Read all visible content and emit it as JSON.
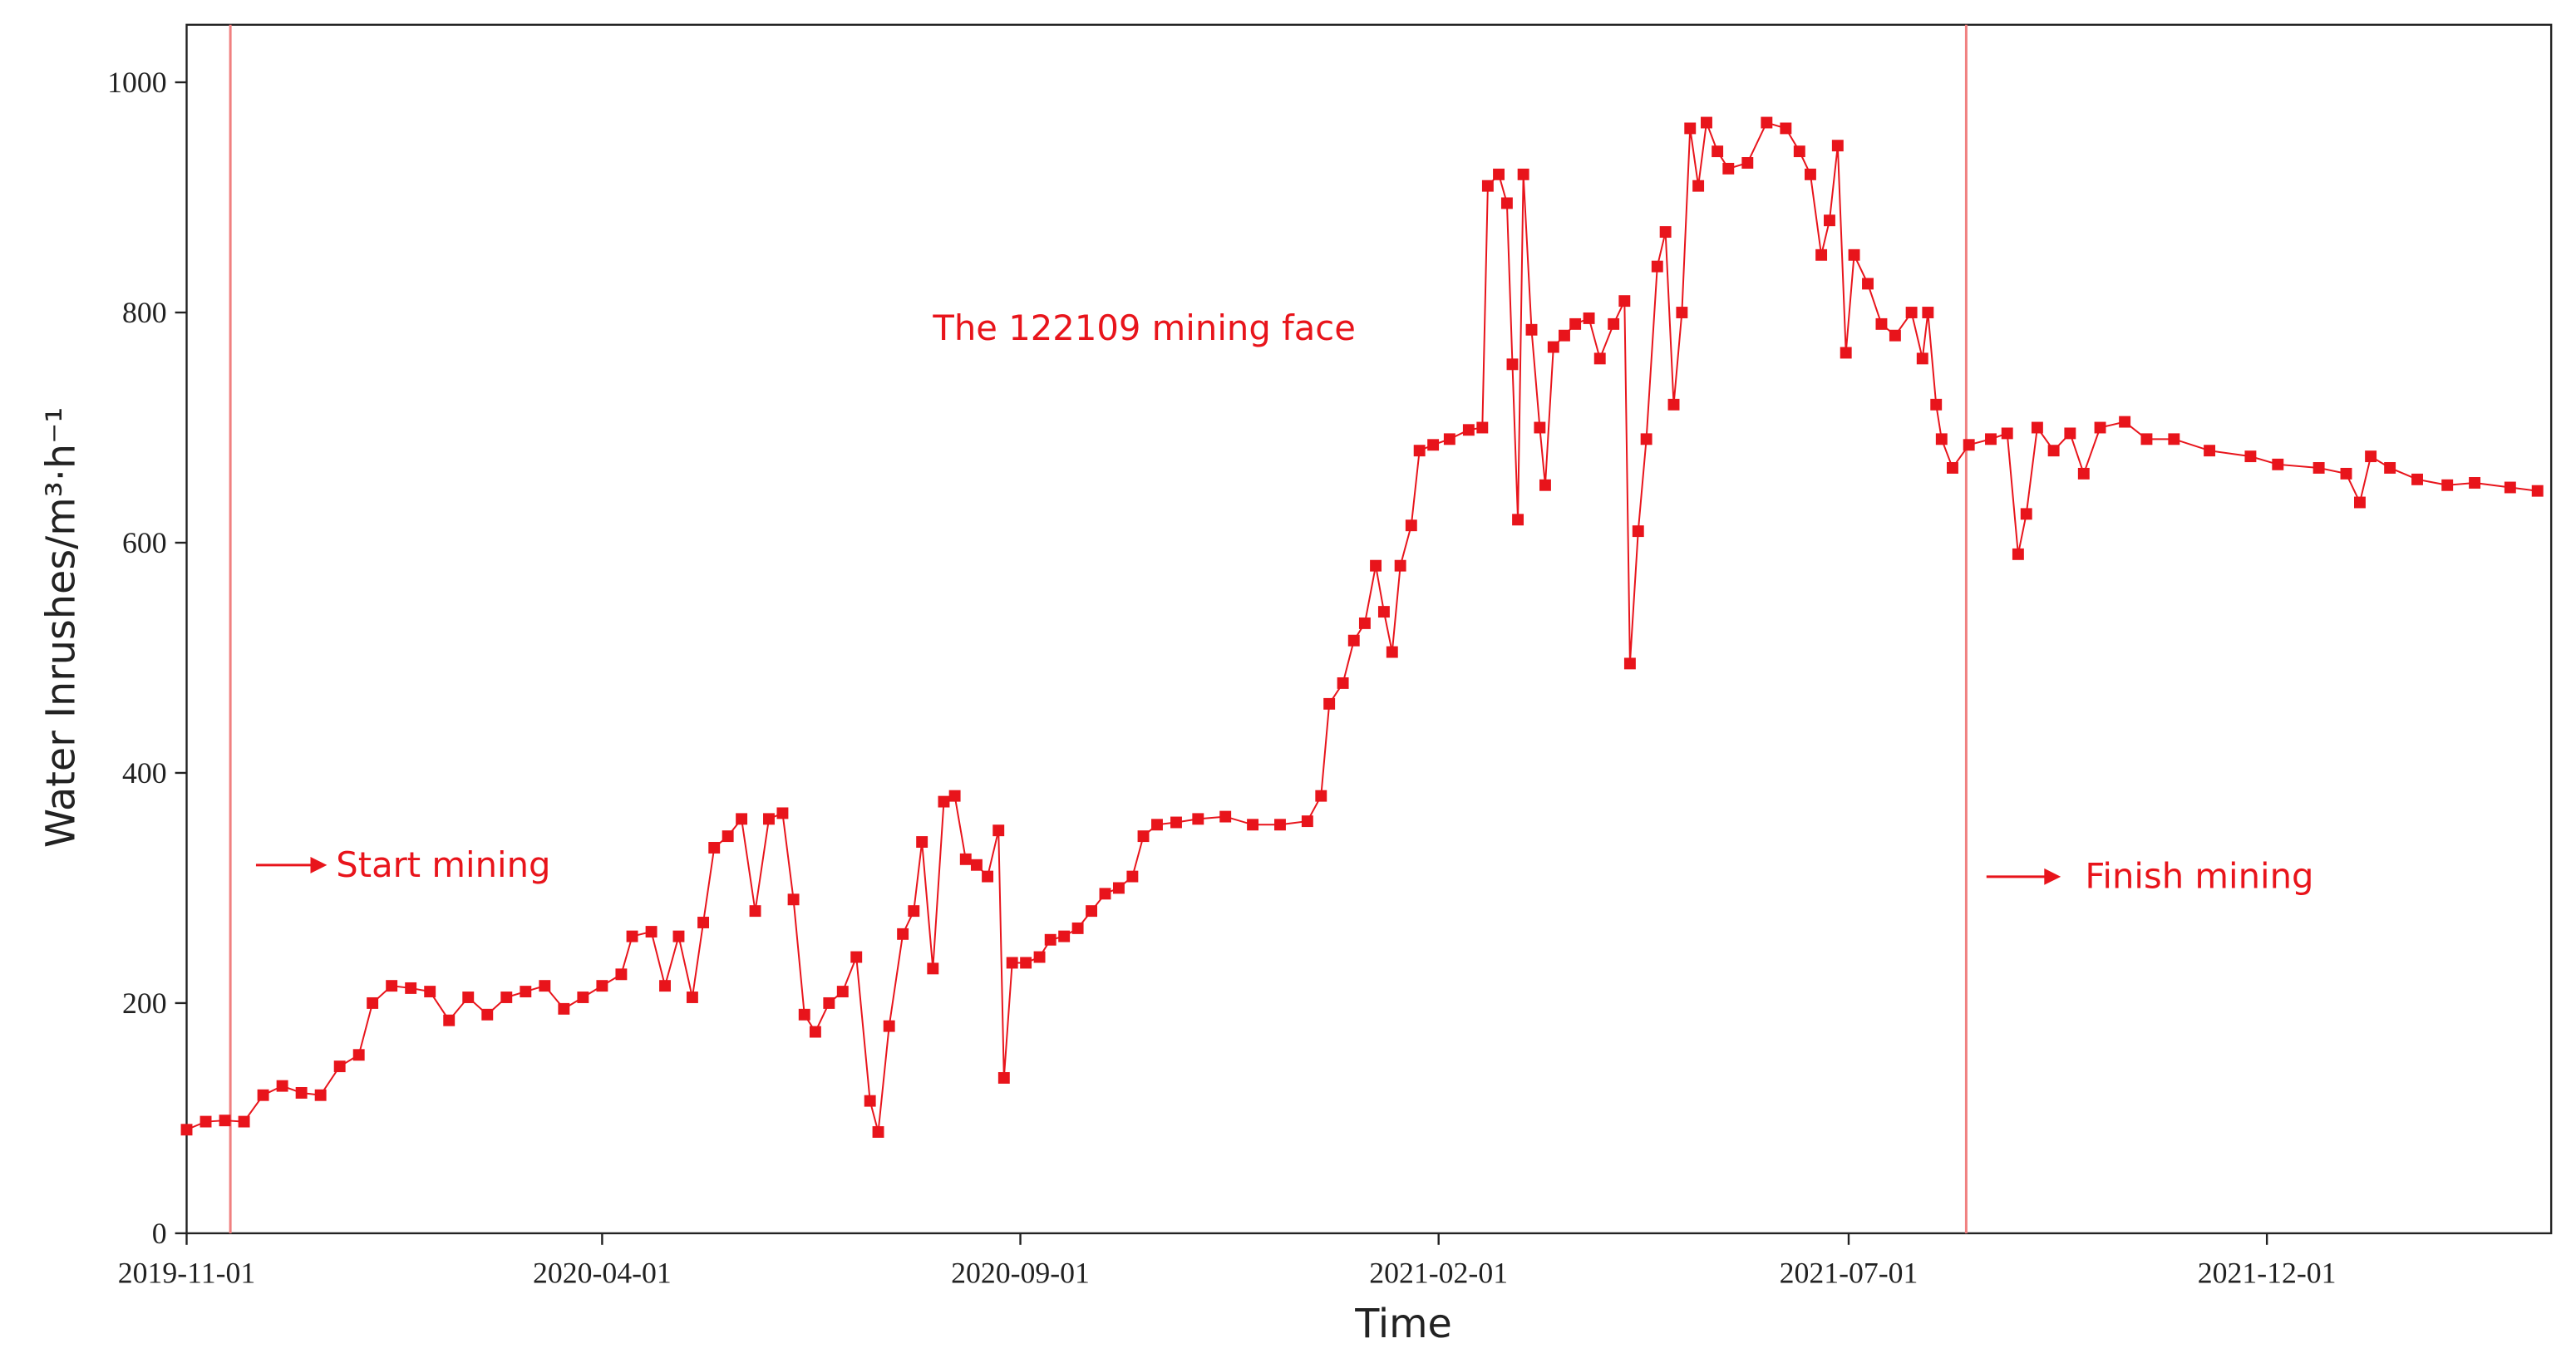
{
  "chart_data": {
    "type": "line",
    "x_label": "Time",
    "y_label": "Water Inrushes/m³·h⁻¹",
    "xlim": [
      "2019-11-01",
      "2022-03-15"
    ],
    "xticks": [
      "2019-11-01",
      "2020-04-01",
      "2020-09-01",
      "2021-02-01",
      "2021-07-01",
      "2021-12-01"
    ],
    "ylim": [
      0,
      1050
    ],
    "yticks": [
      0,
      200,
      400,
      600,
      800,
      1000
    ],
    "vlines": [
      {
        "x": "2019-11-17",
        "label": "Start mining"
      },
      {
        "x": "2021-08-13",
        "label": "Finish mining"
      }
    ],
    "annotations": [
      "The 122109 mining face"
    ],
    "x": [
      "2019-11-01",
      "2019-11-08",
      "2019-11-15",
      "2019-11-22",
      "2019-11-29",
      "2019-12-06",
      "2019-12-13",
      "2019-12-20",
      "2019-12-27",
      "2020-01-03",
      "2020-01-08",
      "2020-01-15",
      "2020-01-22",
      "2020-01-29",
      "2020-02-05",
      "2020-02-12",
      "2020-02-19",
      "2020-02-26",
      "2020-03-04",
      "2020-03-11",
      "2020-03-18",
      "2020-03-25",
      "2020-04-01",
      "2020-04-08",
      "2020-04-12",
      "2020-04-19",
      "2020-04-24",
      "2020-04-29",
      "2020-05-04",
      "2020-05-08",
      "2020-05-12",
      "2020-05-17",
      "2020-05-22",
      "2020-05-27",
      "2020-06-01",
      "2020-06-06",
      "2020-06-10",
      "2020-06-14",
      "2020-06-18",
      "2020-06-23",
      "2020-06-28",
      "2020-07-03",
      "2020-07-08",
      "2020-07-11",
      "2020-07-15",
      "2020-07-20",
      "2020-07-24",
      "2020-07-27",
      "2020-07-31",
      "2020-08-04",
      "2020-08-08",
      "2020-08-12",
      "2020-08-16",
      "2020-08-20",
      "2020-08-24",
      "2020-08-26",
      "2020-08-29",
      "2020-09-03",
      "2020-09-08",
      "2020-09-12",
      "2020-09-17",
      "2020-09-22",
      "2020-09-27",
      "2020-10-02",
      "2020-10-07",
      "2020-10-12",
      "2020-10-16",
      "2020-10-21",
      "2020-10-28",
      "2020-11-05",
      "2020-11-15",
      "2020-11-25",
      "2020-12-05",
      "2020-12-15",
      "2020-12-20",
      "2020-12-23",
      "2020-12-28",
      "2021-01-01",
      "2021-01-05",
      "2021-01-09",
      "2021-01-12",
      "2021-01-15",
      "2021-01-18",
      "2021-01-22",
      "2021-01-25",
      "2021-01-30",
      "2021-02-05",
      "2021-02-12",
      "2021-02-17",
      "2021-02-19",
      "2021-02-23",
      "2021-02-26",
      "2021-02-28",
      "2021-03-02",
      "2021-03-04",
      "2021-03-07",
      "2021-03-10",
      "2021-03-12",
      "2021-03-15",
      "2021-03-19",
      "2021-03-23",
      "2021-03-28",
      "2021-04-01",
      "2021-04-06",
      "2021-04-10",
      "2021-04-12",
      "2021-04-15",
      "2021-04-18",
      "2021-04-22",
      "2021-04-25",
      "2021-04-28",
      "2021-05-01",
      "2021-05-04",
      "2021-05-07",
      "2021-05-10",
      "2021-05-14",
      "2021-05-18",
      "2021-05-25",
      "2021-06-01",
      "2021-06-08",
      "2021-06-13",
      "2021-06-17",
      "2021-06-21",
      "2021-06-24",
      "2021-06-27",
      "2021-06-30",
      "2021-07-03",
      "2021-07-08",
      "2021-07-13",
      "2021-07-18",
      "2021-07-24",
      "2021-07-28",
      "2021-07-30",
      "2021-08-02",
      "2021-08-04",
      "2021-08-08",
      "2021-08-14",
      "2021-08-22",
      "2021-08-28",
      "2021-09-01",
      "2021-09-04",
      "2021-09-08",
      "2021-09-14",
      "2021-09-20",
      "2021-09-25",
      "2021-10-01",
      "2021-10-10",
      "2021-10-18",
      "2021-10-28",
      "2021-11-10",
      "2021-11-25",
      "2021-12-05",
      "2021-12-20",
      "2021-12-30",
      "2022-01-04",
      "2022-01-08",
      "2022-01-15",
      "2022-01-25",
      "2022-02-05",
      "2022-02-15",
      "2022-02-28",
      "2022-03-10"
    ],
    "series": [
      {
        "color": "#e8141b",
        "values": [
          90,
          97,
          98,
          97,
          120,
          128,
          122,
          120,
          145,
          155,
          200,
          215,
          213,
          210,
          185,
          205,
          190,
          205,
          210,
          215,
          195,
          205,
          215,
          225,
          258,
          262,
          215,
          258,
          205,
          270,
          335,
          345,
          360,
          280,
          360,
          365,
          290,
          190,
          175,
          200,
          210,
          240,
          115,
          88,
          180,
          260,
          280,
          340,
          230,
          375,
          380,
          325,
          320,
          310,
          350,
          135,
          235,
          235,
          240,
          255,
          258,
          265,
          280,
          295,
          300,
          310,
          345,
          355,
          357,
          360,
          362,
          355,
          355,
          358,
          380,
          460,
          478,
          515,
          530,
          580,
          540,
          505,
          580,
          615,
          680,
          685,
          690,
          698,
          700,
          910,
          920,
          895,
          755,
          620,
          920,
          785,
          700,
          650,
          770,
          780,
          790,
          795,
          760,
          790,
          810,
          495,
          610,
          690,
          840,
          870,
          720,
          800,
          960,
          910,
          965,
          940,
          925,
          930,
          965,
          960,
          940,
          920,
          850,
          880,
          945,
          765,
          850,
          825,
          790,
          780,
          800,
          760,
          800,
          720,
          690,
          665,
          685,
          690,
          695,
          590,
          625,
          700,
          680,
          695,
          660,
          700,
          705,
          690,
          690,
          680,
          675,
          668,
          665,
          660,
          635,
          675,
          665,
          655,
          650,
          652,
          648,
          645
        ]
      }
    ]
  }
}
